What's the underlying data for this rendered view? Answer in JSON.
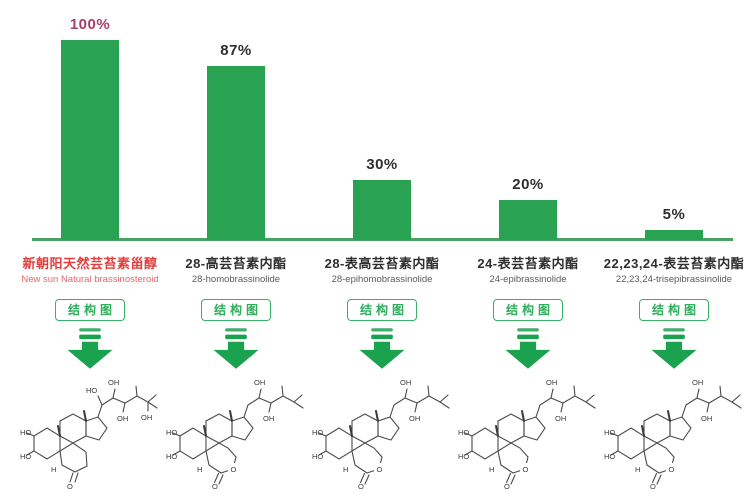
{
  "chart_data": {
    "type": "bar",
    "title": "",
    "categories": [
      "新朝阳天然芸苔素甾醇",
      "28-高芸苔素内酯",
      "28-表高芸苔素内酯",
      "24-表芸苔素内酯",
      "22,23,24-表芸苔素内酯"
    ],
    "values": [
      100,
      87,
      30,
      20,
      5
    ],
    "value_labels": [
      "100%",
      "87%",
      "30%",
      "20%",
      "5%"
    ],
    "unit": "%",
    "ylim": [
      0,
      100
    ],
    "grid": false,
    "legend": "none",
    "bar_color": "#29a351",
    "baseline_color": "#4aa263",
    "highlight_value_color": "#a8406a",
    "value_color": "#2e2e2e"
  },
  "columns": [
    {
      "percent": "100%",
      "name_zh": "新朝阳天然芸苔素甾醇",
      "name_en": "New sun Natural brassinosteroid",
      "button_label": "结构图",
      "structure": "ketone",
      "highlight": true
    },
    {
      "percent": "87%",
      "name_zh": "28-高芸苔素内酯",
      "name_en": "28-homobrassinolide",
      "button_label": "结构图",
      "structure": "lactone",
      "highlight": false
    },
    {
      "percent": "30%",
      "name_zh": "28-表高芸苔素内酯",
      "name_en": "28-epihomobrassinolide",
      "button_label": "结构图",
      "structure": "lactone",
      "highlight": false
    },
    {
      "percent": "20%",
      "name_zh": "24-表芸苔素内酯",
      "name_en": "24-epibrassinolide",
      "button_label": "结构图",
      "structure": "lactone",
      "highlight": false
    },
    {
      "percent": "5%",
      "name_zh": "22,23,24-表芸苔素内酯",
      "name_en": "22,23,24-trisepibrassinolide",
      "button_label": "结构图",
      "structure": "lactone",
      "highlight": false
    }
  ],
  "structures": {
    "ketone": {
      "labels": {
        "ho_top": "HO",
        "oh_top": "OH",
        "oh_mid": "OH",
        "oh_end": "OH",
        "ho_left1": "HO",
        "ho_left2": "HO",
        "h": "H",
        "o_carbonyl": "O"
      }
    },
    "lactone": {
      "labels": {
        "oh_top": "OH",
        "oh_mid": "OH",
        "ho_left1": "HO",
        "ho_left2": "HO",
        "h": "H",
        "o_ring": "O",
        "o_carbonyl": "O"
      }
    }
  },
  "colors": {
    "bar_green": "#29a351",
    "button_green": "#37b163",
    "arrow_green": "#1ba24e",
    "highlight_red": "#e23e3e",
    "highlight_pct": "#a8406a"
  },
  "icons": {
    "arrow": "down-arrow-icon",
    "structure": "chemical-structure"
  }
}
